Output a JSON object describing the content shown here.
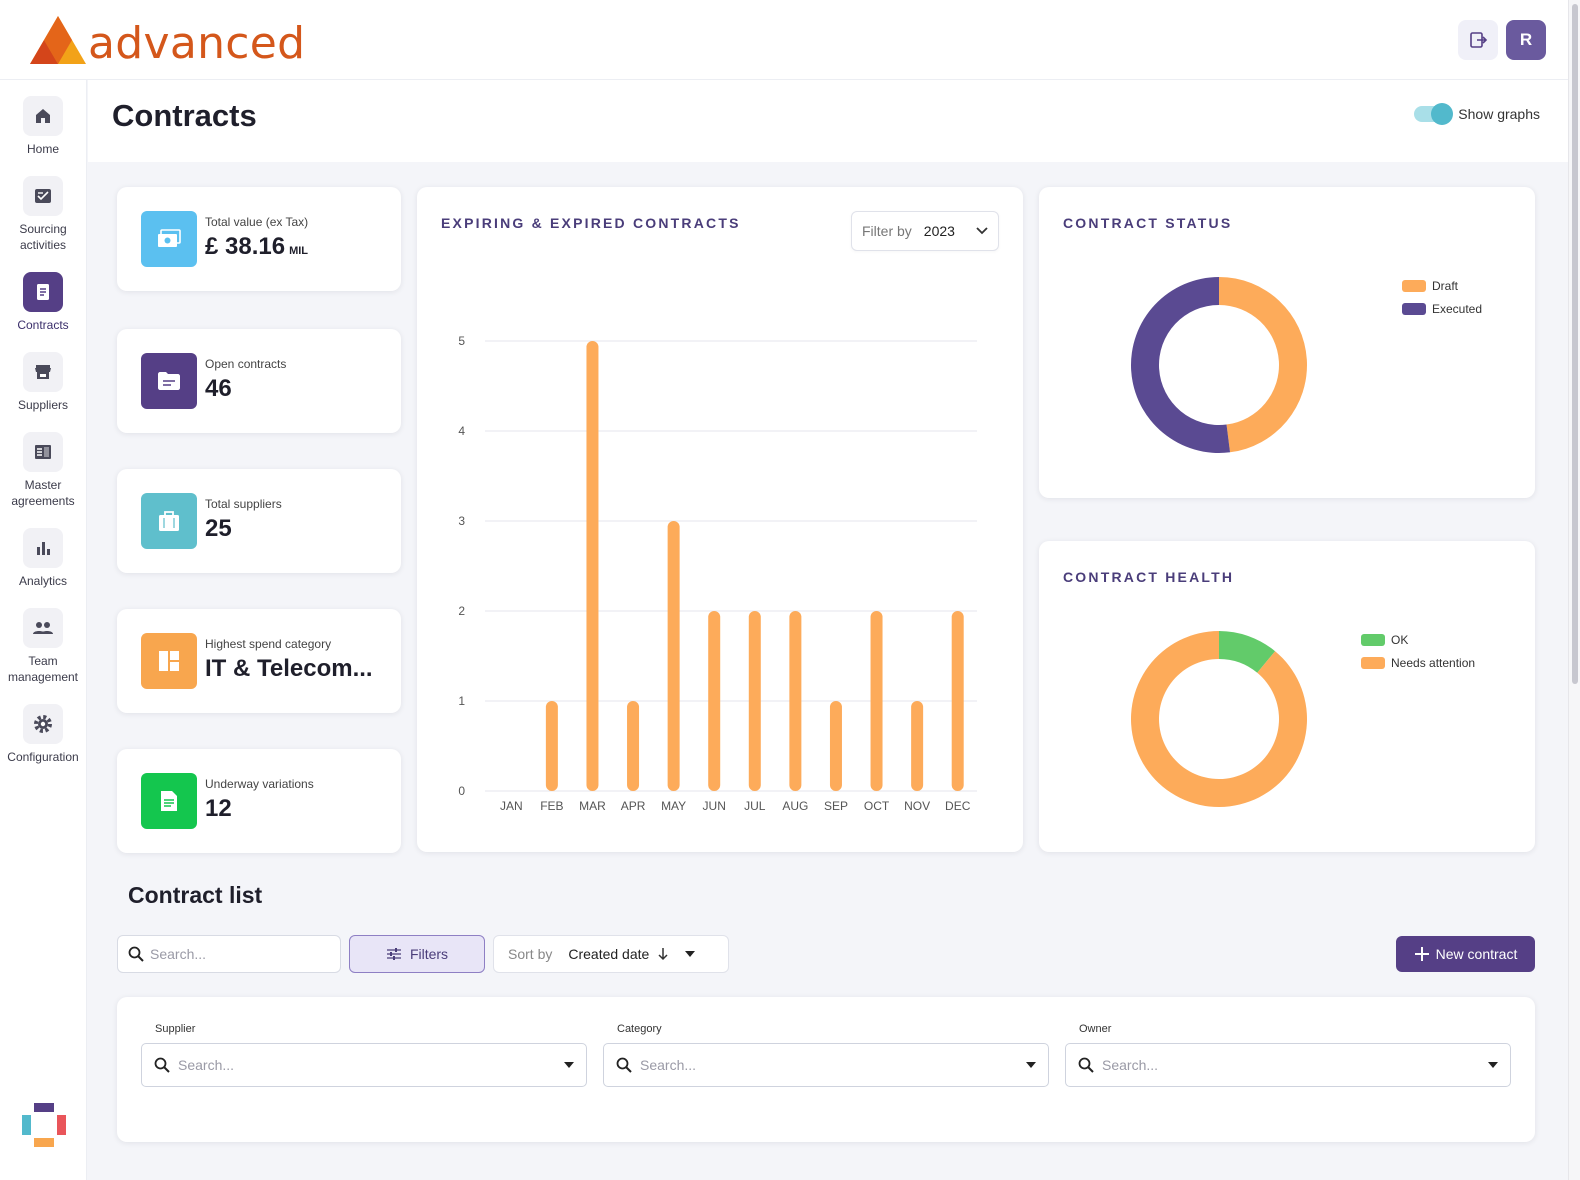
{
  "app": {
    "logo_text": "advanced",
    "avatar_initial": "R"
  },
  "nav": {
    "items": [
      {
        "label": "Home"
      },
      {
        "label": "Sourcing activities"
      },
      {
        "label": "Contracts"
      },
      {
        "label": "Suppliers"
      },
      {
        "label": "Master agreements"
      },
      {
        "label": "Analytics"
      },
      {
        "label": "Team management"
      },
      {
        "label": "Configuration"
      }
    ]
  },
  "header": {
    "title": "Contracts",
    "toggle_label": "Show graphs",
    "toggle_on": true
  },
  "stats": [
    {
      "label": "Total value (ex Tax)",
      "value": "£ 38.16",
      "unit": "MIL",
      "color": "#5bc0f0"
    },
    {
      "label": "Open contracts",
      "value": "46",
      "unit": "",
      "color": "#553f86"
    },
    {
      "label": "Total suppliers",
      "value": "25",
      "unit": "",
      "color": "#5fbfcc"
    },
    {
      "label": "Highest spend category",
      "value": "IT & Telecom...",
      "unit": "",
      "color": "#f8a64e"
    },
    {
      "label": "Underway variations",
      "value": "12",
      "unit": "",
      "color": "#14c64e"
    }
  ],
  "bar_panel": {
    "filter_label": "Filter by",
    "filter_value": "2023"
  },
  "colors": {
    "accent": "#553f86",
    "orange": "#fdab5a",
    "purple": "#5a4a92",
    "green": "#62cb6a"
  },
  "chart_data": [
    {
      "type": "bar",
      "title": "EXPIRING & EXPIRED CONTRACTS",
      "categories": [
        "JAN",
        "FEB",
        "MAR",
        "APR",
        "MAY",
        "JUN",
        "JUL",
        "AUG",
        "SEP",
        "OCT",
        "NOV",
        "DEC"
      ],
      "values": [
        0,
        1,
        5,
        1,
        3,
        2,
        2,
        2,
        1,
        2,
        1,
        2
      ],
      "yticks": [
        0,
        1,
        2,
        3,
        4,
        5
      ],
      "ylim": [
        0,
        5
      ],
      "xlabel": "",
      "ylabel": ""
    },
    {
      "type": "pie",
      "title": "CONTRACT STATUS",
      "labels": [
        "Draft",
        "Executed"
      ],
      "values": [
        48,
        52
      ]
    },
    {
      "type": "pie",
      "title": "CONTRACT HEALTH",
      "labels": [
        "OK",
        "Needs attention"
      ],
      "values": [
        11,
        89
      ]
    }
  ],
  "list": {
    "title": "Contract list",
    "search_placeholder": "Search...",
    "filters_label": "Filters",
    "sort_label": "Sort by",
    "sort_value": "Created date",
    "new_label": "New contract",
    "filter_fields": [
      {
        "label": "Supplier",
        "placeholder": "Search..."
      },
      {
        "label": "Category",
        "placeholder": "Search..."
      },
      {
        "label": "Owner",
        "placeholder": "Search..."
      }
    ]
  }
}
